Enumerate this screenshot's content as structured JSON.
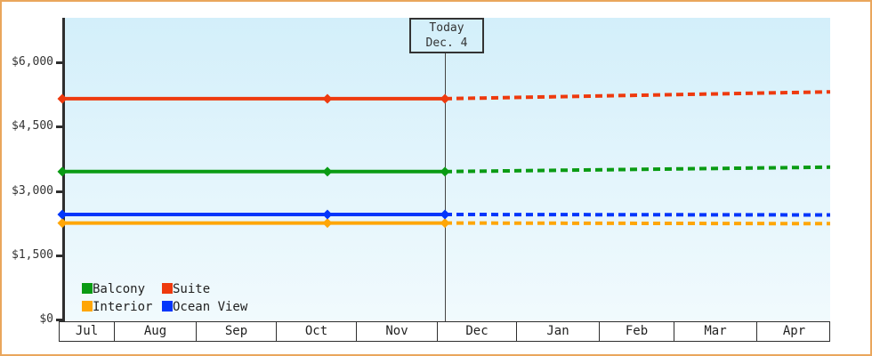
{
  "colors": {
    "frame_border": "#eaa65c",
    "plot_gradient_top": "#d3effa",
    "plot_gradient_bottom": "#f1fafd",
    "axis": "#2e2e2e",
    "balcony": "#0a9b14",
    "suite": "#ee3a0e",
    "interior": "#ffa607",
    "ocean_view": "#0336fb"
  },
  "legend": {
    "rows": [
      [
        {
          "label": "Balcony",
          "color": "#0a9b14"
        },
        {
          "label": "Suite",
          "color": "#ee3a0e"
        }
      ],
      [
        {
          "label": "Interior",
          "color": "#ffa607"
        },
        {
          "label": "Ocean View",
          "color": "#0336fb"
        }
      ]
    ]
  },
  "chart_data": {
    "type": "line",
    "title": "",
    "xlabel": "",
    "ylabel": "",
    "y_axis": {
      "ticks": [
        0,
        1500,
        3000,
        4500,
        6000
      ],
      "tick_labels": [
        "$0",
        "$1,500",
        "$3,000",
        "$4,500",
        "$6,000"
      ],
      "min": 0,
      "max": 6000,
      "grid": false
    },
    "x_axis": {
      "months": [
        "Jul",
        "Aug",
        "Sep",
        "Oct",
        "Nov",
        "Dec",
        "Jan",
        "Feb",
        "Mar",
        "Apr"
      ],
      "boundaries_frac": [
        0,
        0.0715,
        0.1776,
        0.2814,
        0.3852,
        0.4902,
        0.5928,
        0.7001,
        0.797,
        0.9043,
        1.0
      ]
    },
    "today": {
      "label": "Today",
      "date": "Dec. 4",
      "x_frac": 0.5006
    },
    "legend_position": "bottom-left-inside",
    "series": [
      {
        "name": "Interior",
        "color": "#ffa607",
        "history": {
          "x_frac": [
            0.0046,
            0.3483,
            0.5006
          ],
          "values": [
            2250,
            2250,
            2250
          ]
        },
        "forecast": {
          "x_frac": [
            0.5006,
            1.0
          ],
          "values": [
            2250,
            2235
          ]
        }
      },
      {
        "name": "Ocean View",
        "color": "#0336fb",
        "history": {
          "x_frac": [
            0.0046,
            0.3483,
            0.5006
          ],
          "values": [
            2450,
            2450,
            2450
          ]
        },
        "forecast": {
          "x_frac": [
            0.5006,
            1.0
          ],
          "values": [
            2450,
            2440
          ]
        }
      },
      {
        "name": "Balcony",
        "color": "#0a9b14",
        "history": {
          "x_frac": [
            0.0046,
            0.3483,
            0.5006
          ],
          "values": [
            3450,
            3450,
            3450
          ]
        },
        "forecast": {
          "x_frac": [
            0.5006,
            1.0
          ],
          "values": [
            3450,
            3555
          ]
        }
      },
      {
        "name": "Suite",
        "color": "#ee3a0e",
        "history": {
          "x_frac": [
            0.0046,
            0.3483,
            0.5006
          ],
          "values": [
            5150,
            5150,
            5150
          ]
        },
        "forecast": {
          "x_frac": [
            0.5006,
            1.0
          ],
          "values": [
            5150,
            5310
          ]
        }
      }
    ]
  }
}
